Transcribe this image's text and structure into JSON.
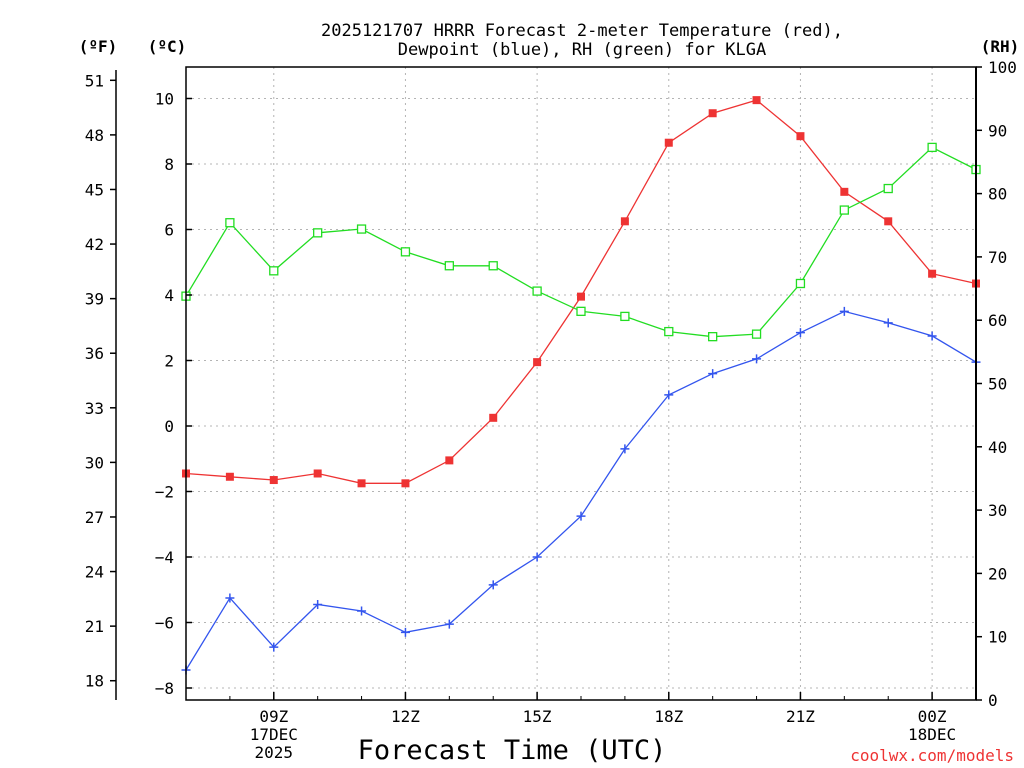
{
  "chart_data": {
    "type": "line",
    "title_line1": "2025121707 HRRR Forecast 2-meter Temperature (red),",
    "title_line2": "Dewpoint (blue), RH (green) for KLGA",
    "left_outer_unit": "(ºF)",
    "left_inner_unit": "(ºC)",
    "right_unit": "(RH)",
    "xlabel": "Forecast Time (UTC)",
    "credit": "coolwx.com/models",
    "x_hours": [
      7,
      8,
      9,
      10,
      11,
      12,
      13,
      14,
      15,
      16,
      17,
      18,
      19,
      20,
      21,
      22,
      23,
      24,
      25
    ],
    "x_ticks": [
      {
        "hour": 9,
        "lines": [
          "09Z",
          "17DEC",
          "2025"
        ]
      },
      {
        "hour": 12,
        "lines": [
          "12Z"
        ]
      },
      {
        "hour": 15,
        "lines": [
          "15Z"
        ]
      },
      {
        "hour": 18,
        "lines": [
          "18Z"
        ]
      },
      {
        "hour": 21,
        "lines": [
          "21Z"
        ]
      },
      {
        "hour": 24,
        "lines": [
          "00Z",
          "18DEC"
        ]
      }
    ],
    "xlim": [
      7,
      25
    ],
    "celsius_ylim": [
      -8.6,
      11.2
    ],
    "celsius_ticks": [
      "10",
      "8",
      "6",
      "4",
      "2",
      "0",
      "−2",
      "−4",
      "−6",
      "−8"
    ],
    "fahrenheit_ticks": [
      "51",
      "48",
      "45",
      "42",
      "39",
      "36",
      "33",
      "30",
      "27",
      "24",
      "21",
      "18"
    ],
    "rh_ylim": [
      0,
      100
    ],
    "rh_ticks": [
      "100",
      "90",
      "80",
      "70",
      "60",
      "50",
      "40",
      "30",
      "20",
      "10",
      "0"
    ],
    "grid": true,
    "series": [
      {
        "name": "2-meter Temperature",
        "axis": "celsius",
        "color": "#ee3333",
        "marker": "filled-square",
        "values": [
          -1.45,
          -1.55,
          -1.65,
          -1.45,
          -1.75,
          -1.75,
          -1.05,
          0.25,
          1.95,
          3.95,
          6.25,
          8.65,
          9.55,
          9.95,
          8.85,
          7.15,
          6.25,
          4.65,
          4.35
        ]
      },
      {
        "name": "Dewpoint",
        "axis": "celsius",
        "color": "#3355ee",
        "marker": "plus",
        "values": [
          -7.45,
          -5.25,
          -6.75,
          -5.45,
          -5.65,
          -6.3,
          -6.05,
          -4.85,
          -4.0,
          -2.75,
          -0.7,
          0.95,
          1.6,
          2.05,
          2.85,
          3.5,
          3.15,
          2.75,
          1.95
        ]
      },
      {
        "name": "RH",
        "axis": "rh",
        "color": "#22dd22",
        "marker": "open-square",
        "values": [
          63.8,
          75.4,
          67.8,
          73.8,
          74.4,
          70.8,
          68.6,
          68.6,
          64.6,
          61.4,
          60.6,
          58.2,
          57.4,
          57.8,
          65.8,
          77.4,
          80.8,
          87.3,
          83.8
        ]
      }
    ]
  }
}
